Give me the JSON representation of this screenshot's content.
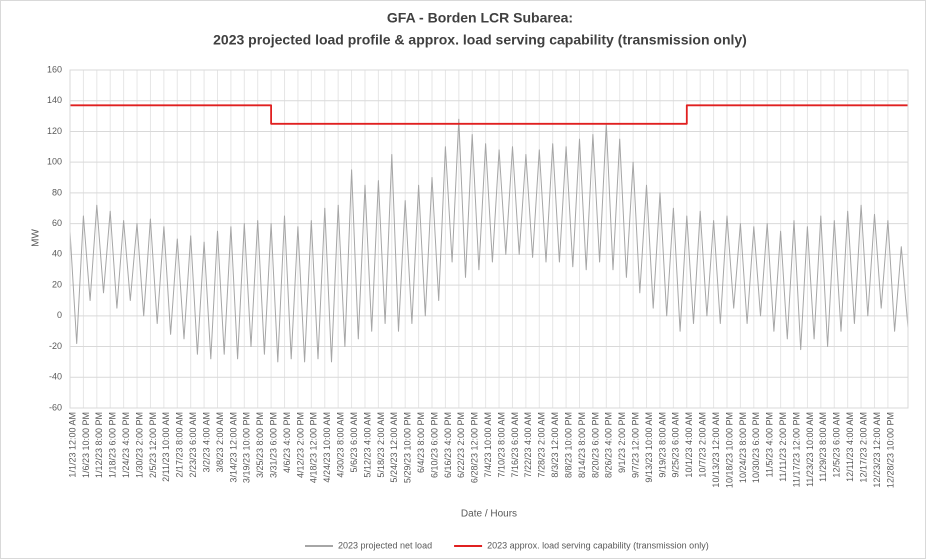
{
  "chart_data": {
    "type": "line",
    "title": "GFA - Borden LCR Subarea:",
    "subtitle": "2023 projected load profile & approx. load serving capability (transmission only)",
    "x_label": "Date / Hours",
    "y_label": "MW",
    "categories": [
      "1/1/23 12:00 AM",
      null,
      "1/6/23 10:00 PM",
      null,
      "1/12/23 8:00 PM",
      null,
      "1/18/23 6:00 PM",
      null,
      "1/24/23 4:00 PM",
      null,
      "1/30/23 2:00 PM",
      null,
      "2/5/23 12:00 PM",
      null,
      "2/11/23 10:00 AM",
      null,
      "2/17/23 8:00 AM",
      null,
      "2/23/23 6:00 AM",
      null,
      "3/2/23 4:00 AM",
      null,
      "3/8/23 2:00 AM",
      null,
      "3/14/23 12:00 AM",
      null,
      "3/19/23 10:00 PM",
      null,
      "3/25/23 8:00 PM",
      null,
      "3/31/23 6:00 PM",
      null,
      "4/6/23 4:00 PM",
      null,
      "4/12/23 2:00 PM",
      null,
      "4/18/23 12:00 PM",
      null,
      "4/24/23 10:00 AM",
      null,
      "4/30/23 8:00 AM",
      null,
      "5/6/23 6:00 AM",
      null,
      "5/12/23 4:00 AM",
      null,
      "5/18/23 2:00 AM",
      null,
      "5/24/23 12:00 AM",
      null,
      "5/29/23 10:00 PM",
      null,
      "6/4/23 8:00 PM",
      null,
      "6/10/23 6:00 PM",
      null,
      "6/16/23 4:00 PM",
      null,
      "6/22/23 2:00 PM",
      null,
      "6/28/23 12:00 PM",
      null,
      "7/4/23 10:00 AM",
      null,
      "7/10/23 8:00 AM",
      null,
      "7/16/23 6:00 AM",
      null,
      "7/22/23 4:00 AM",
      null,
      "7/28/23 2:00 AM",
      null,
      "8/3/23 12:00 AM",
      null,
      "8/8/23 10:00 PM",
      null,
      "8/14/23 8:00 PM",
      null,
      "8/20/23 6:00 PM",
      null,
      "8/26/23 4:00 PM",
      null,
      "9/1/23 2:00 PM",
      null,
      "9/7/23 12:00 PM",
      null,
      "9/13/23 10:00 AM",
      null,
      "9/19/23 8:00 AM",
      null,
      "9/25/23 6:00 AM",
      null,
      "10/1/23 4:00 AM",
      null,
      "10/7/23 2:00 AM",
      null,
      "10/13/23 12:00 AM",
      null,
      "10/18/23 10:00 PM",
      null,
      "10/24/23 8:00 PM",
      null,
      "10/30/23 6:00 PM",
      null,
      "11/5/23 4:00 PM",
      null,
      "11/11/23 2:00 PM",
      null,
      "11/17/23 12:00 PM",
      null,
      "11/23/23 10:00 AM",
      null,
      "11/29/23 8:00 AM",
      null,
      "12/5/23 6:00 AM",
      null,
      "12/11/23 4:00 AM",
      null,
      "12/17/23 2:00 AM",
      null,
      "12/23/23 12:00 AM",
      null,
      "12/28/23 10:00 PM",
      null,
      null,
      null
    ],
    "series": [
      {
        "name": "2023 projected net load",
        "color": "#a6a6a6",
        "values": [
          55,
          -18,
          65,
          10,
          72,
          15,
          68,
          5,
          62,
          10,
          60,
          0,
          63,
          -5,
          58,
          -12,
          50,
          -15,
          52,
          -25,
          48,
          -28,
          55,
          -25,
          58,
          -28,
          60,
          -20,
          62,
          -25,
          60,
          -30,
          65,
          -28,
          58,
          -30,
          62,
          -28,
          70,
          -30,
          72,
          -20,
          95,
          -15,
          85,
          -10,
          88,
          -5,
          105,
          -10,
          75,
          -5,
          85,
          0,
          90,
          10,
          110,
          35,
          128,
          25,
          118,
          30,
          112,
          35,
          108,
          40,
          110,
          40,
          105,
          38,
          108,
          35,
          112,
          35,
          110,
          32,
          115,
          30,
          118,
          35,
          125,
          30,
          115,
          25,
          100,
          15,
          85,
          5,
          80,
          0,
          70,
          -10,
          65,
          -5,
          68,
          0,
          62,
          -5,
          65,
          5,
          60,
          -5,
          58,
          0,
          60,
          -10,
          55,
          -15,
          62,
          -22,
          58,
          -15,
          65,
          -20,
          62,
          -10,
          68,
          -5,
          72,
          0,
          66,
          5,
          62,
          -10,
          45,
          -8
        ]
      },
      {
        "name": "2023 approx. load serving capability (transmission only)",
        "color": "#e02020",
        "step": true,
        "values": [
          137,
          137,
          137,
          137,
          137,
          137,
          137,
          137,
          137,
          137,
          137,
          137,
          137,
          137,
          137,
          137,
          137,
          137,
          137,
          137,
          137,
          137,
          137,
          137,
          137,
          137,
          137,
          137,
          137,
          137,
          125,
          125,
          125,
          125,
          125,
          125,
          125,
          125,
          125,
          125,
          125,
          125,
          125,
          125,
          125,
          125,
          125,
          125,
          125,
          125,
          125,
          125,
          125,
          125,
          125,
          125,
          125,
          125,
          125,
          125,
          125,
          125,
          125,
          125,
          125,
          125,
          125,
          125,
          125,
          125,
          125,
          125,
          125,
          125,
          125,
          125,
          125,
          125,
          125,
          125,
          125,
          125,
          125,
          125,
          125,
          125,
          125,
          125,
          125,
          125,
          125,
          125,
          137,
          137,
          137,
          137,
          137,
          137,
          137,
          137,
          137,
          137,
          137,
          137,
          137,
          137,
          137,
          137,
          137,
          137,
          137,
          137,
          137,
          137,
          137,
          137,
          137,
          137,
          137,
          137,
          137,
          137,
          137,
          137,
          137,
          137
        ]
      }
    ],
    "ylim": [
      -60,
      160
    ],
    "yticks": [
      -60,
      -40,
      -20,
      0,
      20,
      40,
      60,
      80,
      100,
      120,
      140,
      160
    ],
    "grid": true,
    "legend": "bottom"
  }
}
